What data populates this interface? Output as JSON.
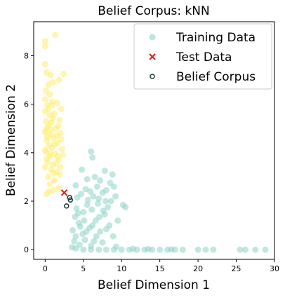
{
  "chart_data": {
    "type": "scatter",
    "title": "Belief Corpus: kNN",
    "xlabel": "Belief Dimension 1",
    "ylabel": "Belief Dimension 2",
    "xlim": [
      -1.5,
      30
    ],
    "ylim": [
      -0.4,
      9.4
    ],
    "xticks": [
      0,
      5,
      10,
      15,
      20,
      25,
      30
    ],
    "yticks": [
      0,
      2,
      4,
      6,
      8
    ],
    "grid": false,
    "legend_position": "top-right",
    "colors": {
      "training": "#8dd3c7",
      "training_alt": "#ffed6f",
      "test": "#e31a1c",
      "belief": "#1b3b36"
    },
    "series": [
      {
        "name": "Training Data",
        "marker": "circle-filled",
        "points": [
          [
            0.0,
            8.6
          ],
          [
            0.0,
            8.4
          ],
          [
            1.3,
            8.85
          ],
          [
            0.0,
            7.65
          ],
          [
            0.7,
            7.2
          ],
          [
            2.4,
            7.25
          ],
          [
            1.8,
            7.0
          ],
          [
            0.2,
            7.3
          ],
          [
            1.0,
            6.9
          ],
          [
            0.4,
            6.8
          ],
          [
            0.1,
            6.55
          ],
          [
            0.0,
            6.2
          ],
          [
            0.9,
            6.1
          ],
          [
            0.3,
            5.95
          ],
          [
            1.6,
            6.05
          ],
          [
            2.1,
            5.8
          ],
          [
            0.0,
            5.7
          ],
          [
            0.6,
            5.55
          ],
          [
            1.2,
            5.6
          ],
          [
            0.1,
            5.3
          ],
          [
            0.8,
            5.25
          ],
          [
            1.9,
            5.35
          ],
          [
            0.3,
            5.05
          ],
          [
            1.4,
            5.0
          ],
          [
            0.0,
            4.85
          ],
          [
            0.7,
            4.75
          ],
          [
            2.0,
            4.8
          ],
          [
            1.1,
            4.6
          ],
          [
            0.2,
            4.5
          ],
          [
            1.6,
            4.4
          ],
          [
            0.5,
            4.3
          ],
          [
            0.9,
            4.2
          ],
          [
            2.2,
            4.15
          ],
          [
            0.1,
            4.05
          ],
          [
            1.3,
            3.95
          ],
          [
            0.6,
            3.85
          ],
          [
            1.8,
            3.7
          ],
          [
            0.3,
            3.6
          ],
          [
            1.0,
            3.5
          ],
          [
            2.0,
            3.4
          ],
          [
            0.8,
            3.3
          ],
          [
            1.5,
            3.2
          ],
          [
            0.4,
            3.0
          ],
          [
            1.2,
            2.85
          ],
          [
            0.6,
            2.7
          ],
          [
            1.8,
            2.55
          ],
          [
            0.5,
            2.4
          ],
          [
            1.1,
            2.45
          ],
          [
            0.2,
            2.3
          ],
          [
            0.0,
            4.1
          ],
          [
            0.4,
            5.8
          ],
          [
            1.5,
            4.7
          ],
          [
            2.3,
            3.9
          ],
          [
            0.9,
            5.95
          ],
          [
            0.2,
            3.75
          ],
          [
            1.7,
            5.1
          ],
          [
            0.6,
            6.4
          ],
          [
            1.1,
            3.15
          ],
          [
            2.1,
            4.55
          ],
          [
            0.0,
            3.4
          ],
          [
            1.4,
            3.55
          ],
          [
            0.8,
            4.95
          ],
          [
            0.3,
            4.65
          ],
          [
            1.9,
            3.1
          ],
          [
            0.5,
            5.15
          ],
          [
            1.2,
            4.35
          ],
          [
            0.7,
            3.95
          ],
          [
            1.6,
            3.85
          ],
          [
            0.1,
            4.9
          ],
          [
            1.0,
            5.4
          ],
          [
            6.0,
            4.05
          ],
          [
            6.2,
            3.8
          ],
          [
            4.8,
            3.3
          ],
          [
            7.8,
            3.25
          ],
          [
            8.8,
            3.1
          ],
          [
            6.5,
            3.0
          ],
          [
            5.5,
            2.9
          ],
          [
            7.2,
            2.85
          ],
          [
            8.5,
            2.75
          ],
          [
            4.0,
            2.65
          ],
          [
            9.0,
            2.6
          ],
          [
            6.8,
            2.6
          ],
          [
            5.3,
            2.5
          ],
          [
            8.0,
            2.45
          ],
          [
            7.5,
            2.35
          ],
          [
            9.2,
            2.2
          ],
          [
            4.7,
            2.3
          ],
          [
            6.3,
            2.2
          ],
          [
            8.6,
            2.0
          ],
          [
            10.2,
            1.85
          ],
          [
            5.6,
            2.05
          ],
          [
            7.0,
            2.1
          ],
          [
            10.5,
            1.75
          ],
          [
            4.2,
            2.15
          ],
          [
            9.5,
            1.2
          ],
          [
            8.4,
            1.0
          ],
          [
            6.1,
            1.65
          ],
          [
            7.8,
            1.45
          ],
          [
            5.0,
            1.55
          ],
          [
            3.9,
            1.35
          ],
          [
            6.6,
            1.2
          ],
          [
            4.4,
            1.1
          ],
          [
            8.0,
            0.85
          ],
          [
            5.8,
            0.9
          ],
          [
            7.2,
            0.75
          ],
          [
            3.6,
            0.8
          ],
          [
            4.9,
            0.65
          ],
          [
            6.7,
            0.55
          ],
          [
            8.9,
            0.55
          ],
          [
            5.2,
            0.4
          ],
          [
            3.8,
            0.35
          ],
          [
            7.5,
            0.3
          ],
          [
            4.5,
            0.2
          ],
          [
            6.0,
            0.15
          ],
          [
            9.3,
            0.12
          ],
          [
            5.5,
            1.85
          ],
          [
            4.1,
            1.7
          ],
          [
            6.9,
            1.9
          ],
          [
            5.1,
            1.2
          ],
          [
            4.6,
            0.95
          ],
          [
            7.6,
            1.6
          ],
          [
            6.4,
            0.35
          ],
          [
            5.9,
            2.4
          ],
          [
            4.3,
            1.5
          ],
          [
            7.9,
            2.0
          ],
          [
            6.2,
            1.0
          ],
          [
            5.4,
            0.75
          ],
          [
            8.2,
            1.75
          ],
          [
            4.0,
            0.55
          ],
          [
            7.1,
            1.35
          ],
          [
            3.5,
            0.1
          ],
          [
            4.0,
            0.05
          ],
          [
            5.0,
            0.0
          ],
          [
            6.0,
            0.0
          ],
          [
            7.0,
            0.0
          ],
          [
            8.0,
            0.0
          ],
          [
            9.0,
            0.0
          ],
          [
            10.0,
            0.0
          ],
          [
            11.0,
            0.0
          ],
          [
            12.0,
            0.0
          ],
          [
            13.0,
            0.0
          ],
          [
            14.0,
            0.0
          ],
          [
            15.0,
            0.0
          ],
          [
            16.0,
            0.0
          ],
          [
            17.0,
            0.0
          ],
          [
            18.0,
            0.0
          ],
          [
            20.0,
            0.0
          ],
          [
            21.0,
            0.0
          ],
          [
            22.0,
            0.0
          ],
          [
            25.5,
            0.0
          ],
          [
            26.2,
            0.0
          ],
          [
            27.5,
            0.0
          ],
          [
            28.8,
            0.0
          ],
          [
            13.5,
            0.02
          ],
          [
            11.5,
            0.03
          ],
          [
            16.5,
            0.01
          ]
        ]
      },
      {
        "name": "Test Data",
        "marker": "x",
        "points": [
          [
            2.5,
            2.35
          ]
        ]
      },
      {
        "name": "Belief Corpus",
        "marker": "circle-open",
        "points": [
          [
            3.2,
            2.15
          ],
          [
            3.3,
            2.05
          ],
          [
            2.8,
            1.8
          ]
        ]
      }
    ]
  }
}
